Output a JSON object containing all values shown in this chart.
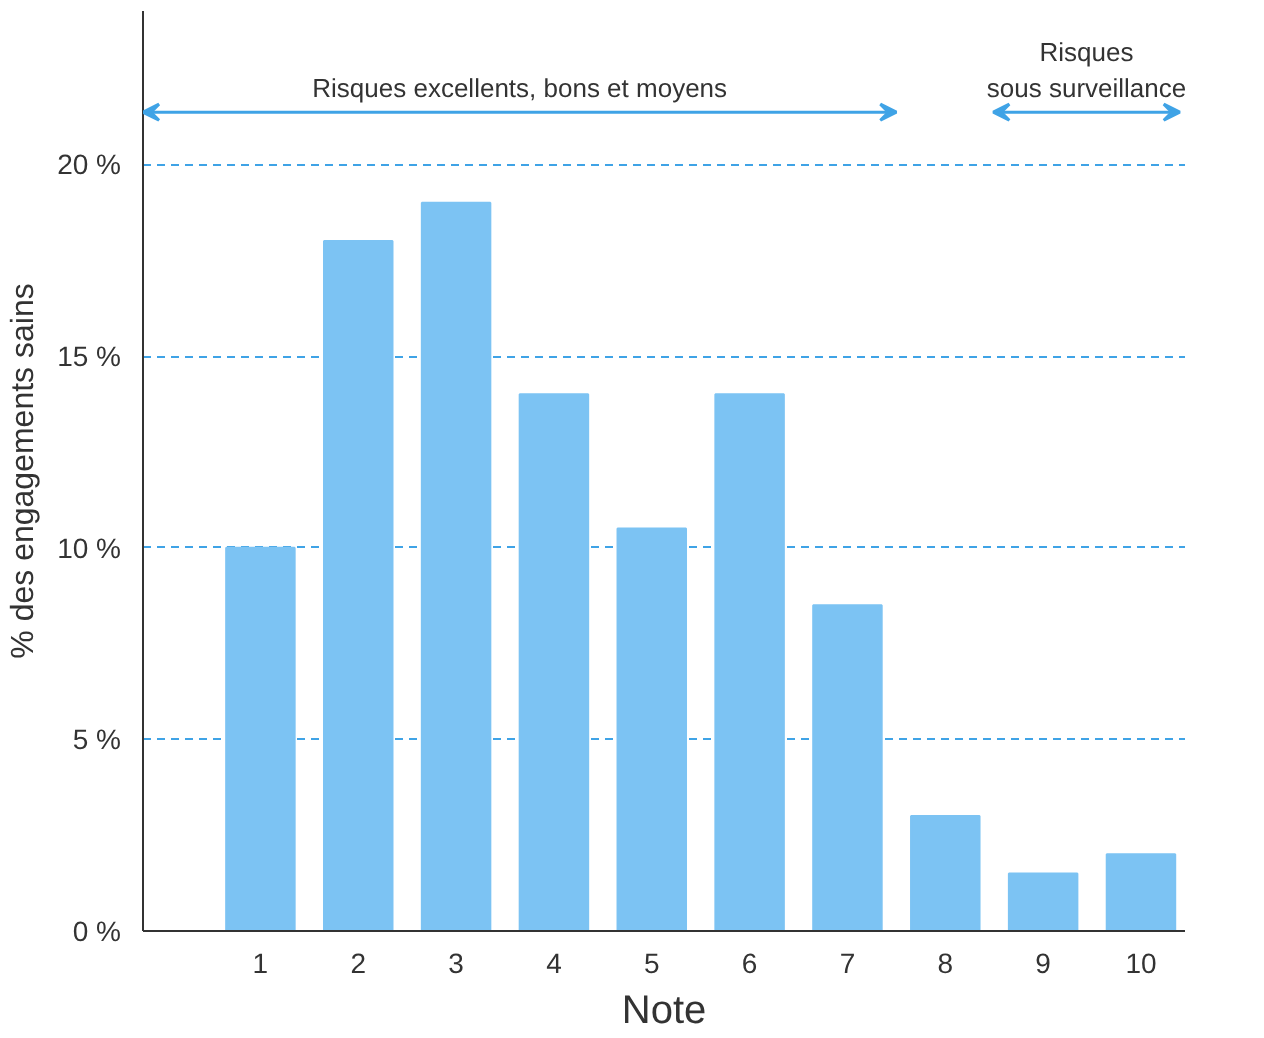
{
  "chart_data": {
    "type": "bar",
    "xlabel": "Note",
    "ylabel": "% des engagements sains",
    "x": [
      1,
      2,
      3,
      4,
      5,
      6,
      7,
      8,
      9,
      10
    ],
    "values": [
      10,
      18,
      19,
      14,
      10.5,
      14,
      8.5,
      3,
      1.5,
      2
    ],
    "color": "#7cc3f3",
    "xlim": [
      -0.2,
      10.45
    ],
    "xticks": [
      1,
      2,
      3,
      4,
      5,
      6,
      7,
      8,
      9,
      10
    ],
    "ylim": [
      0,
      24
    ],
    "yticks": [
      {
        "value": 0,
        "label": "0 %"
      },
      {
        "value": 5,
        "label": "5 %"
      },
      {
        "value": 10,
        "label": "10 %"
      },
      {
        "value": 15,
        "label": "15 %"
      },
      {
        "value": 20,
        "label": "20 %"
      }
    ],
    "grid": "y",
    "annotations": [
      "Risques excellents, bons et moyens",
      "Risques\nsous surveillance"
    ]
  }
}
